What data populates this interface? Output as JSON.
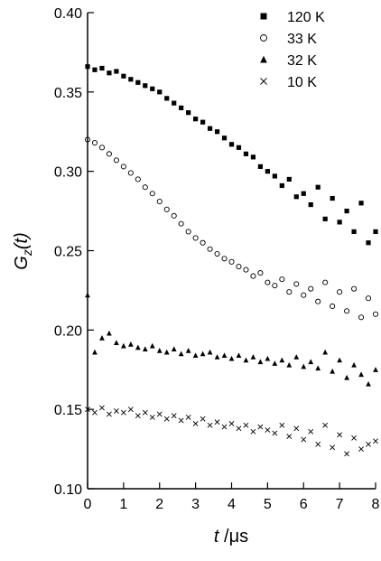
{
  "chart_data": {
    "type": "scatter",
    "ylabel_parts": [
      "G",
      "z",
      "(t)"
    ],
    "xlabel_parts": [
      "t",
      " /μs"
    ],
    "x": [
      0,
      0.2,
      0.4,
      0.6,
      0.8,
      1,
      1.2,
      1.4,
      1.6,
      1.8,
      2,
      2.2,
      2.4,
      2.6,
      2.8,
      3,
      3.2,
      3.4,
      3.6,
      3.8,
      4,
      4.2,
      4.4,
      4.6,
      4.8,
      5,
      5.2,
      5.4,
      5.6,
      5.8,
      6,
      6.2,
      6.4,
      6.6,
      6.8,
      7,
      7.2,
      7.4,
      7.6,
      7.8,
      8
    ],
    "series": [
      {
        "name": "120 K",
        "marker": "square",
        "color": "#000000",
        "values": [
          0.366,
          0.364,
          0.365,
          0.362,
          0.363,
          0.36,
          0.358,
          0.356,
          0.354,
          0.352,
          0.35,
          0.346,
          0.343,
          0.34,
          0.337,
          0.333,
          0.331,
          0.327,
          0.325,
          0.321,
          0.317,
          0.315,
          0.311,
          0.309,
          0.303,
          0.3,
          0.297,
          0.291,
          0.295,
          0.284,
          0.286,
          0.279,
          0.29,
          0.27,
          0.283,
          0.268,
          0.275,
          0.262,
          0.28,
          0.255,
          0.262
        ]
      },
      {
        "name": "33 K",
        "marker": "circle",
        "color": "#000000",
        "values": [
          0.32,
          0.318,
          0.315,
          0.311,
          0.307,
          0.303,
          0.299,
          0.295,
          0.29,
          0.286,
          0.281,
          0.276,
          0.272,
          0.267,
          0.262,
          0.258,
          0.255,
          0.251,
          0.248,
          0.245,
          0.243,
          0.24,
          0.238,
          0.234,
          0.236,
          0.23,
          0.228,
          0.232,
          0.224,
          0.229,
          0.222,
          0.226,
          0.218,
          0.23,
          0.215,
          0.224,
          0.212,
          0.226,
          0.208,
          0.22,
          0.21
        ]
      },
      {
        "name": "32 K",
        "marker": "triangle",
        "color": "#000000",
        "values": [
          0.222,
          0.186,
          0.195,
          0.198,
          0.192,
          0.19,
          0.191,
          0.189,
          0.188,
          0.19,
          0.187,
          0.186,
          0.188,
          0.185,
          0.187,
          0.184,
          0.185,
          0.186,
          0.183,
          0.184,
          0.182,
          0.184,
          0.181,
          0.183,
          0.18,
          0.182,
          0.179,
          0.181,
          0.178,
          0.183,
          0.177,
          0.18,
          0.176,
          0.186,
          0.174,
          0.181,
          0.17,
          0.178,
          0.172,
          0.166,
          0.175
        ]
      },
      {
        "name": "10 K",
        "marker": "cross",
        "color": "#000000",
        "values": [
          0.15,
          0.148,
          0.151,
          0.147,
          0.149,
          0.148,
          0.15,
          0.146,
          0.148,
          0.145,
          0.147,
          0.144,
          0.146,
          0.143,
          0.145,
          0.141,
          0.144,
          0.14,
          0.142,
          0.139,
          0.141,
          0.138,
          0.14,
          0.136,
          0.139,
          0.137,
          0.135,
          0.14,
          0.133,
          0.138,
          0.131,
          0.136,
          0.128,
          0.14,
          0.126,
          0.134,
          0.122,
          0.132,
          0.125,
          0.128,
          0.13
        ]
      }
    ],
    "xlim": [
      0,
      8
    ],
    "xticks": [
      0,
      1,
      2,
      3,
      4,
      5,
      6,
      7,
      8
    ],
    "ylim": [
      0.1,
      0.4
    ],
    "yticks": [
      {
        "value": 0.1,
        "label": "0.10"
      },
      0.15,
      {
        "value": 0.2,
        "label": "0.20"
      },
      0.25,
      {
        "value": 0.3,
        "label": "0.30"
      },
      0.35,
      {
        "value": 0.4,
        "label": "0.40"
      }
    ],
    "legend": "top-right"
  }
}
